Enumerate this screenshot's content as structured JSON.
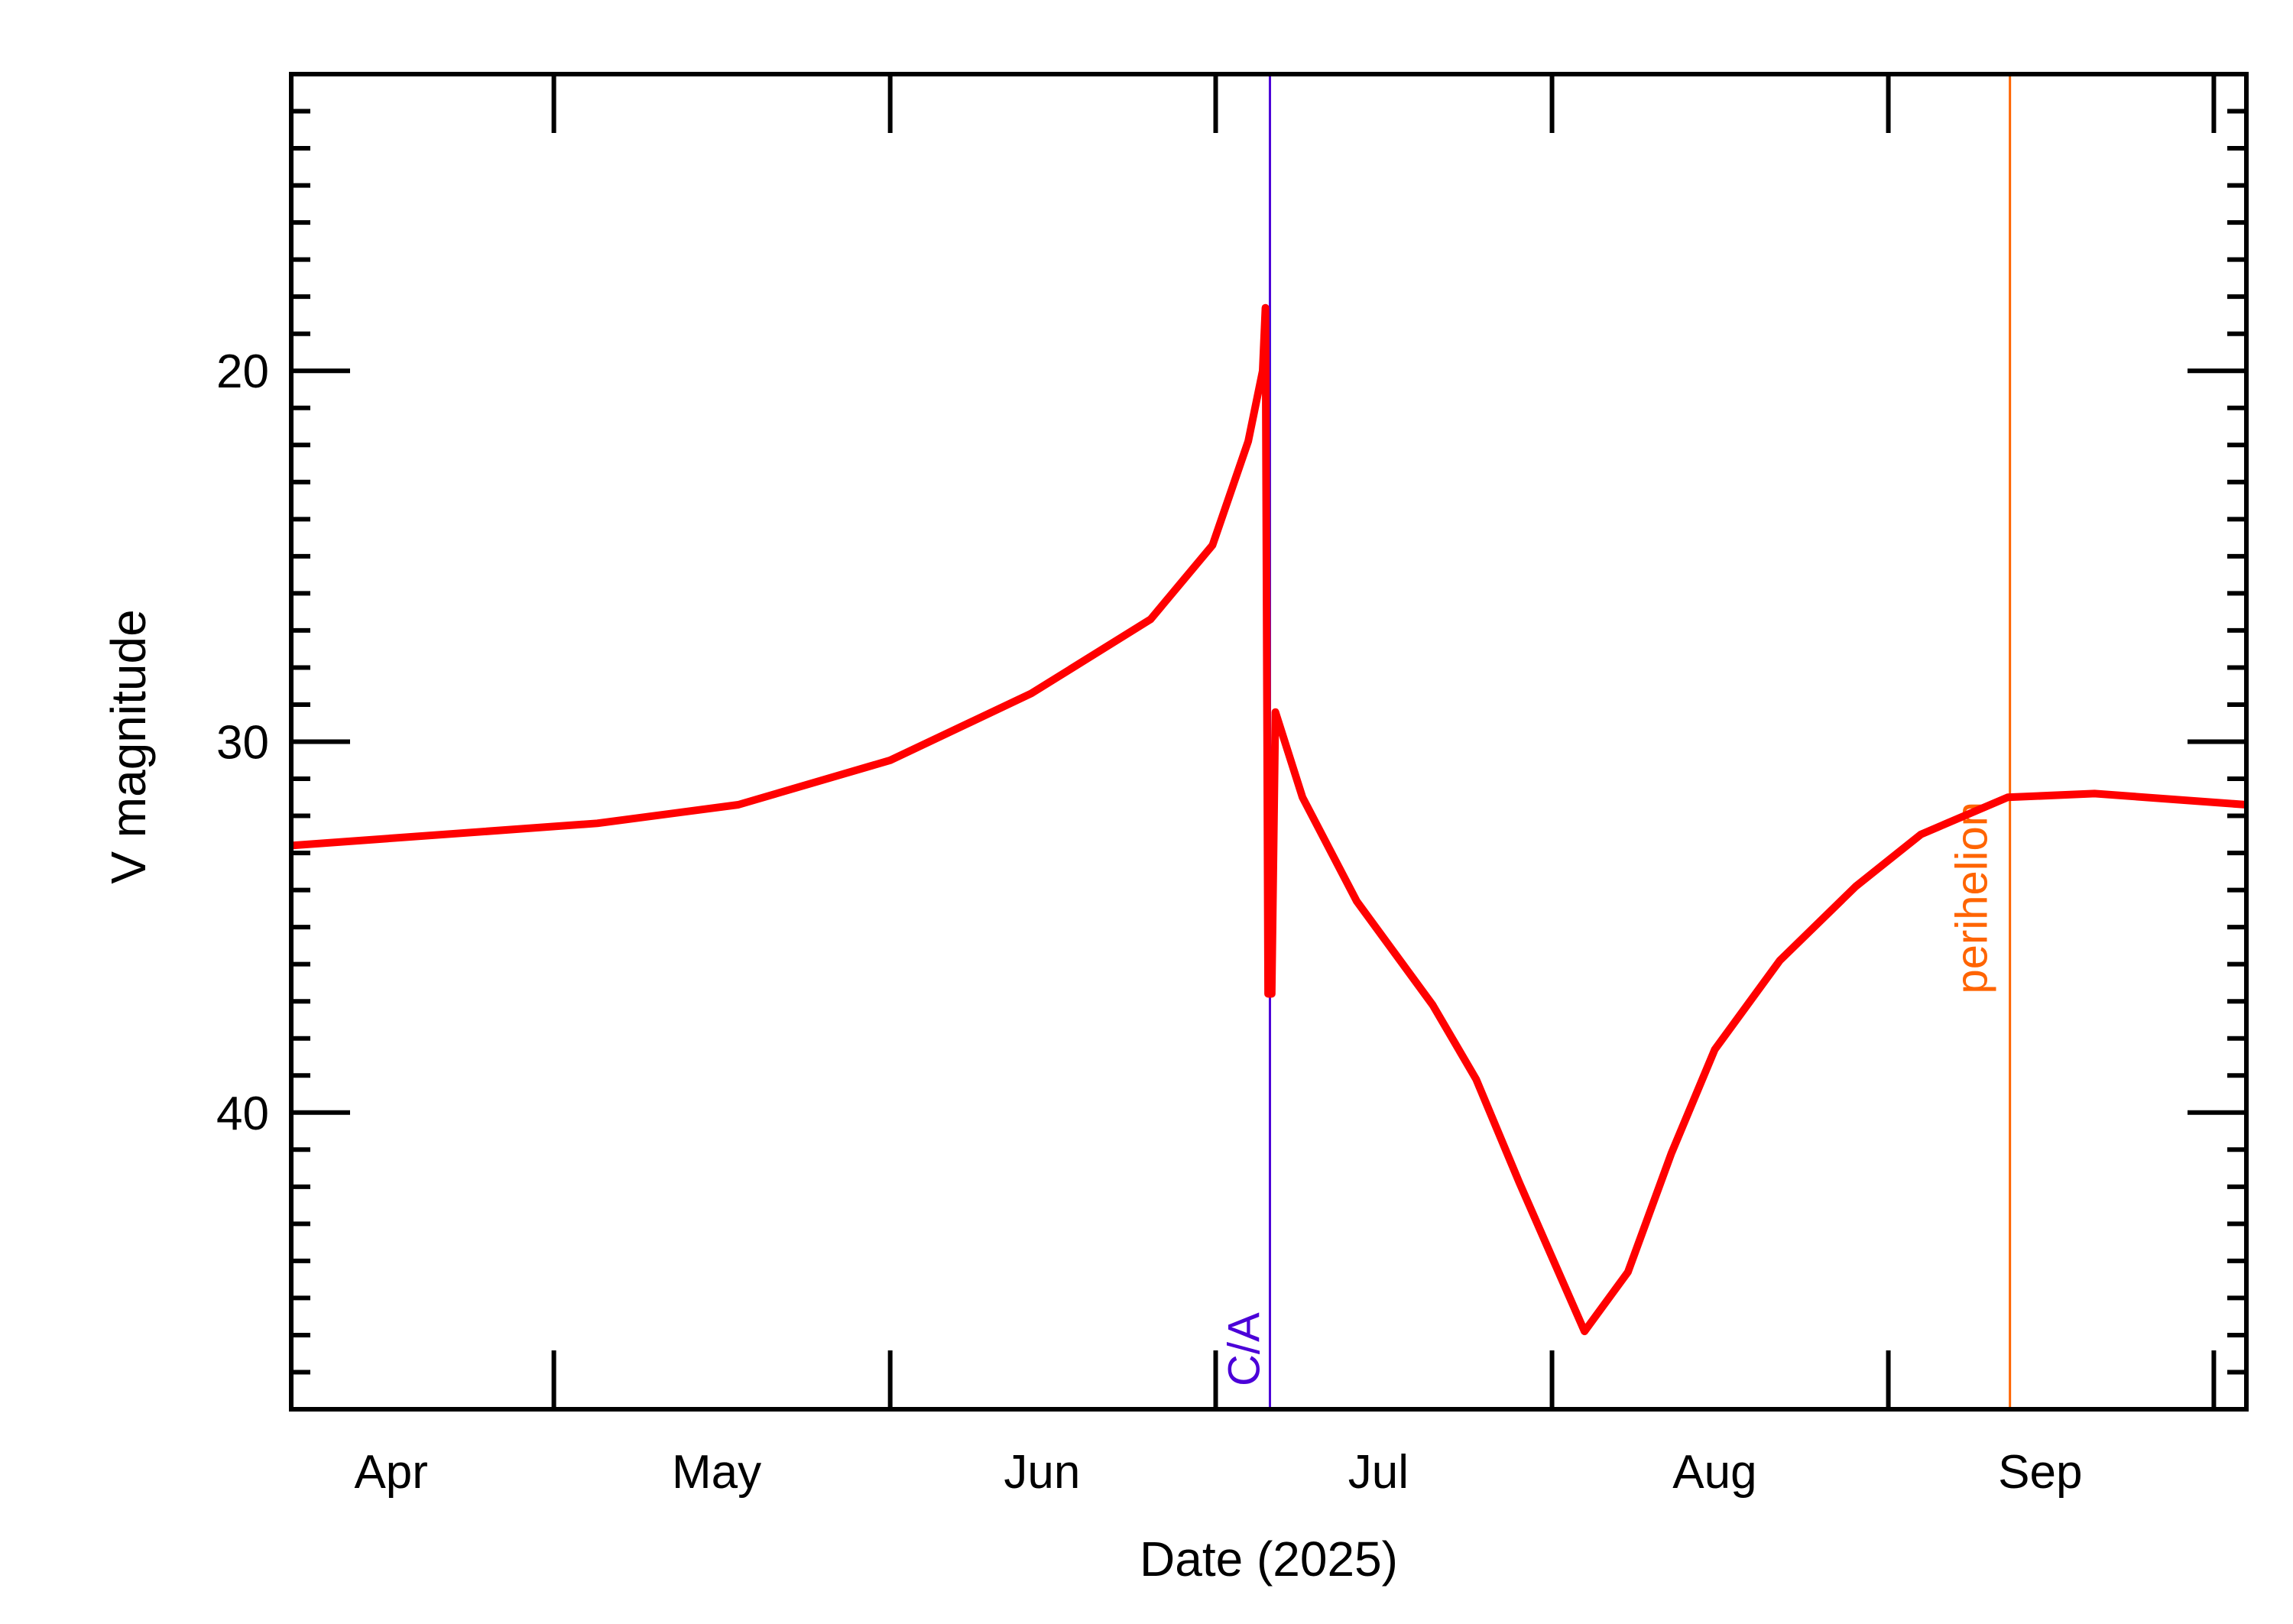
{
  "chart_data": {
    "type": "line",
    "title": "",
    "xlabel": "Date (2025)",
    "ylabel": "V magnitude",
    "xlim": [
      "2025-04-06T19:00",
      "2025-10-04T00:00"
    ],
    "ylim": [
      48,
      12
    ],
    "y_inverted": true,
    "grid": false,
    "x_tick_labels": [
      {
        "label": "Apr",
        "date": "2025-04-16"
      },
      {
        "label": "May",
        "date": "2025-05-16"
      },
      {
        "label": "Jun",
        "date": "2025-06-15"
      },
      {
        "label": "Jul",
        "date": "2025-07-16"
      },
      {
        "label": "Aug",
        "date": "2025-08-16"
      },
      {
        "label": "Sep",
        "date": "2025-09-15"
      }
    ],
    "x_major_ticks": [
      "2025-05-01",
      "2025-06-01",
      "2025-07-01",
      "2025-08-01",
      "2025-09-01",
      "2025-10-01"
    ],
    "y_ticks": [
      20,
      30,
      40
    ],
    "series": [
      {
        "color": "#ff0000",
        "x": [
          "2025-04-06T19:00",
          "2025-05-05",
          "2025-05-18",
          "2025-06-01",
          "2025-06-14",
          "2025-06-25",
          "2025-06-30T17:00",
          "2025-07-04",
          "2025-07-05T08:00",
          "2025-07-05T14:00",
          "2025-07-05T20:00",
          "2025-07-06T04:00",
          "2025-07-06T12:00",
          "2025-07-09",
          "2025-07-14",
          "2025-07-21",
          "2025-07-25",
          "2025-07-29",
          "2025-08-01",
          "2025-08-04",
          "2025-08-08",
          "2025-08-12",
          "2025-08-16",
          "2025-08-22",
          "2025-08-29",
          "2025-09-04",
          "2025-09-12",
          "2025-09-20",
          "2025-10-04"
        ],
        "y": [
          32.8,
          32.2,
          31.7,
          30.5,
          28.7,
          26.7,
          24.7,
          21.9,
          20.0,
          18.3,
          36.8,
          36.8,
          29.2,
          31.5,
          34.3,
          37.1,
          39.1,
          41.9,
          43.9,
          45.9,
          44.3,
          41.1,
          38.3,
          35.9,
          33.9,
          32.5,
          31.5,
          31.4,
          31.7
        ]
      }
    ],
    "annotations": [
      {
        "label": "C/A",
        "date": "2025-07-06T00:00",
        "color": "#4b00d8"
      },
      {
        "label": "perihelion",
        "date": "2025-09-12T05:00",
        "color": "#ff6400"
      }
    ]
  }
}
